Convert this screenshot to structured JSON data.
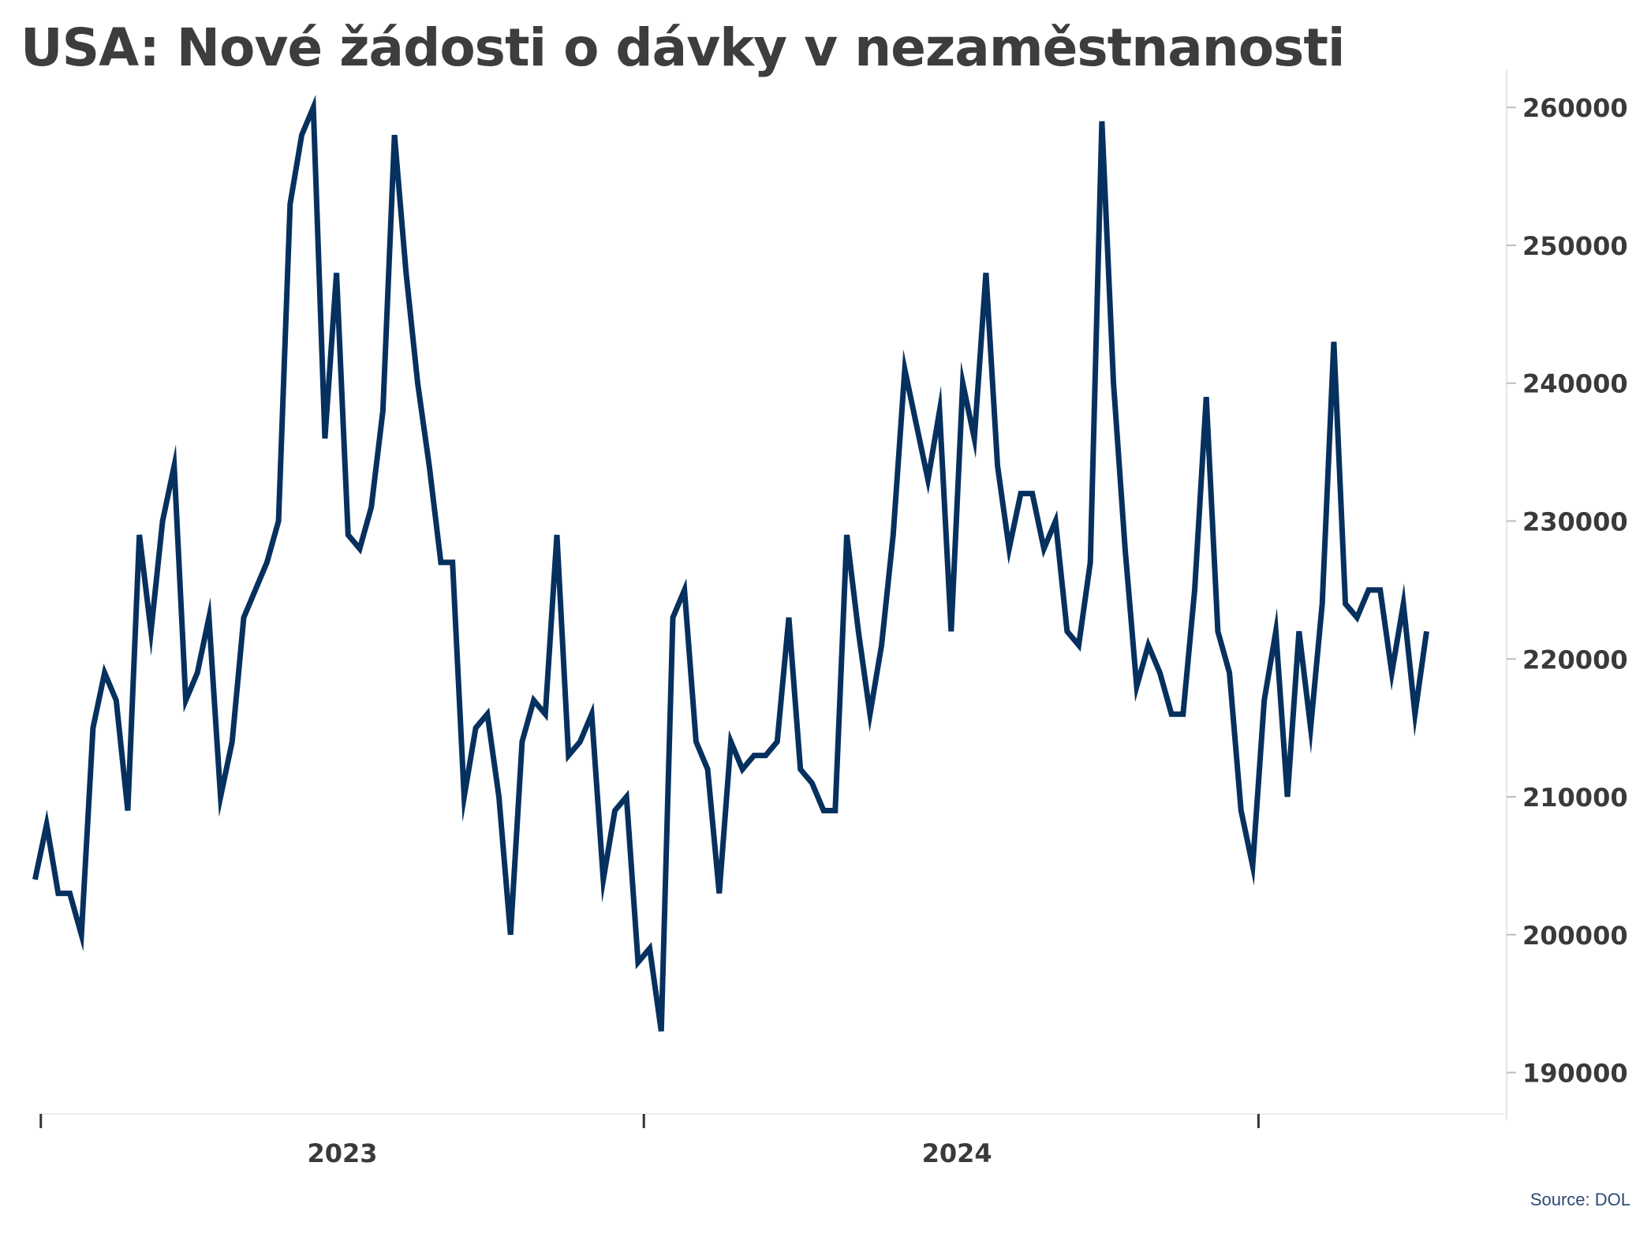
{
  "chart_data": {
    "type": "line",
    "title": "USA: Nové žádosti o dávky v nezaměstnanosti",
    "source": "Source: DOL",
    "xlabel": "",
    "ylabel": "",
    "ylim": [
      187000,
      261500
    ],
    "yticks": [
      190000,
      200000,
      210000,
      220000,
      230000,
      240000,
      250000,
      260000
    ],
    "ytick_labels": [
      "190000",
      "200000",
      "210000",
      "220000",
      "230000",
      "240000",
      "250000",
      "260000"
    ],
    "x_tick_labels": [
      "2023",
      "2024"
    ],
    "x_tick_label_positions": [
      26.5,
      79.5
    ],
    "x_tick_mark_positions": [
      0.5,
      52.5,
      105.5
    ],
    "xlim": [
      -0.3,
      123.5
    ],
    "y_axis_position": "right",
    "grid": false,
    "legend": "none",
    "line_color": "#06305e",
    "series": [
      {
        "values": [
          204000,
          208000,
          203000,
          203000,
          200000,
          215000,
          219000,
          217000,
          209000,
          229000,
          222000,
          230000,
          234000,
          217000,
          219000,
          223000,
          210000,
          214000,
          223000,
          225000,
          227000,
          230000,
          253000,
          258000,
          260000,
          236000,
          248000,
          229000,
          228000,
          231000,
          238000,
          258000,
          248000,
          240000,
          234000,
          227000,
          227000,
          210000,
          215000,
          216000,
          210000,
          200000,
          214000,
          217000,
          216000,
          229000,
          213000,
          214000,
          216000,
          204000,
          209000,
          210000,
          198000,
          199000,
          193000,
          223000,
          225000,
          214000,
          212000,
          203000,
          214000,
          212000,
          213000,
          213000,
          214000,
          223000,
          212000,
          211000,
          209000,
          209000,
          229000,
          222000,
          216000,
          221000,
          229000,
          241000,
          237000,
          233000,
          238000,
          222000,
          240000,
          236000,
          248000,
          234000,
          228000,
          232000,
          232000,
          228000,
          230000,
          222000,
          221000,
          227000,
          259000,
          240000,
          228000,
          218000,
          221000,
          219000,
          216000,
          216000,
          225000,
          239000,
          222000,
          219000,
          209000,
          205000,
          217000,
          222000,
          210000,
          222000,
          215000,
          224000,
          243000,
          224000,
          223000,
          225000,
          225000,
          219000,
          224000,
          216000,
          222000
        ]
      }
    ]
  }
}
